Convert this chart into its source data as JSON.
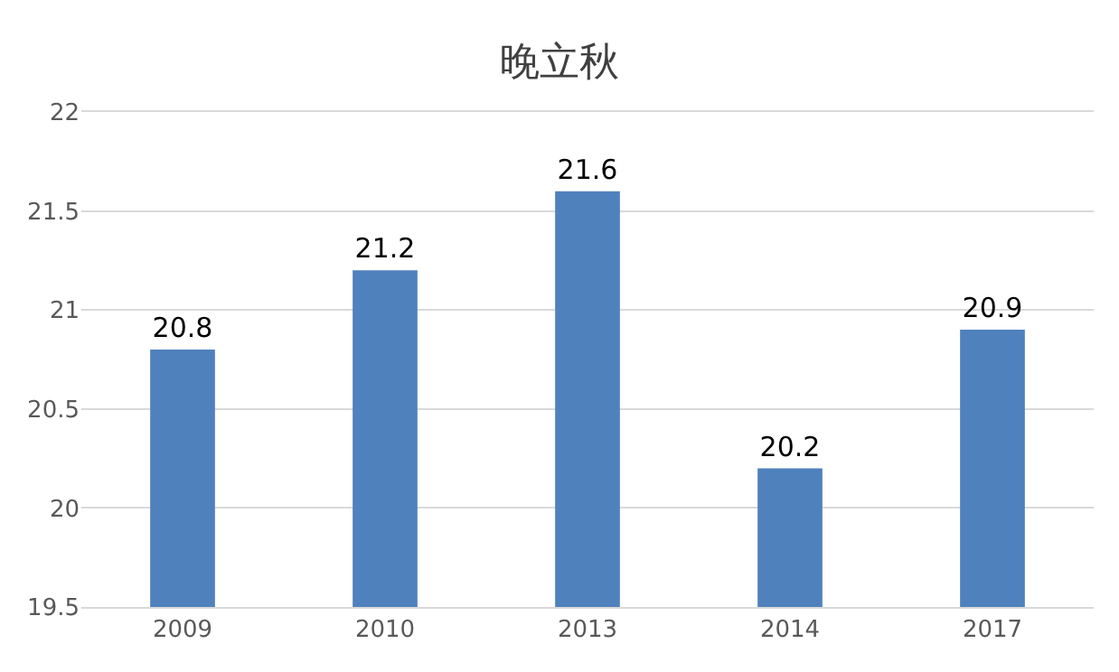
{
  "chart_data": {
    "type": "bar",
    "title": "晚立秋",
    "categories": [
      "2009",
      "2010",
      "2013",
      "2014",
      "2017"
    ],
    "values": [
      20.8,
      21.2,
      21.6,
      20.2,
      20.9
    ],
    "color": "#4f81bd",
    "ylim": [
      19.5,
      22
    ],
    "yticks": [
      19.5,
      20,
      20.5,
      21,
      21.5,
      22
    ],
    "grid": "y",
    "data_labels": true
  }
}
